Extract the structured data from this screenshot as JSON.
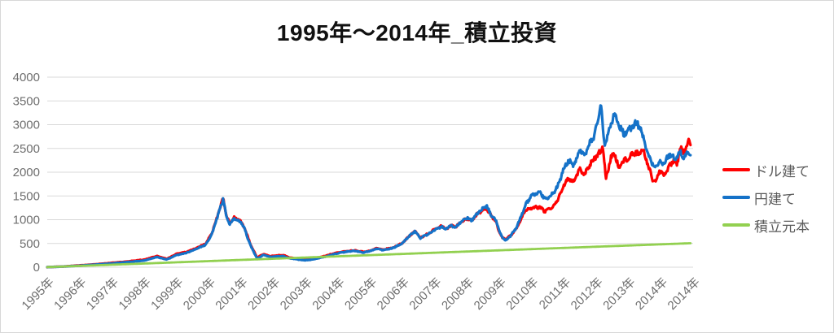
{
  "title": "1995年〜2014年_積立投資",
  "colors": {
    "grid": "#D9D9D9",
    "axis_text": "#6E6E6E",
    "legend_text": "#595959",
    "border": "#D7D7D7",
    "background": "#FFFFFF",
    "dollar_series": "#FF0000",
    "yen_series": "#1572C8",
    "principal_series": "#92D050"
  },
  "chart_data": {
    "type": "line",
    "title": "1995年〜2014年_積立投資",
    "xlabel": "",
    "ylabel": "",
    "ylim": [
      0,
      4000
    ],
    "y_ticks": [
      0,
      500,
      1000,
      1500,
      2000,
      2500,
      3000,
      3500,
      4000
    ],
    "x_range_years": [
      1995.0,
      2015.0
    ],
    "x_tick_labels": [
      "1995年",
      "1996年",
      "1997年",
      "1998年",
      "1999年",
      "2000年",
      "2001年",
      "2002年",
      "2003年",
      "2004年",
      "2005年",
      "2006年",
      "2007年",
      "2008年",
      "2009年",
      "2010年",
      "2011年",
      "2012年",
      "2013年",
      "2014年",
      "2014年"
    ],
    "grid": "horizontal",
    "legend_position": "right",
    "series": [
      {
        "name": "ドル建て",
        "color": "#FF0000",
        "anchors": [
          [
            1995.0,
            2
          ],
          [
            1995.5,
            15
          ],
          [
            1996.0,
            38
          ],
          [
            1996.5,
            62
          ],
          [
            1997.0,
            92
          ],
          [
            1997.5,
            122
          ],
          [
            1998.0,
            160
          ],
          [
            1998.4,
            235
          ],
          [
            1998.7,
            175
          ],
          [
            1999.0,
            280
          ],
          [
            1999.3,
            320
          ],
          [
            1999.6,
            400
          ],
          [
            1999.9,
            490
          ],
          [
            2000.1,
            720
          ],
          [
            2000.3,
            1140
          ],
          [
            2000.45,
            1460
          ],
          [
            2000.55,
            1060
          ],
          [
            2000.65,
            930
          ],
          [
            2000.8,
            1050
          ],
          [
            2001.0,
            960
          ],
          [
            2001.1,
            840
          ],
          [
            2001.3,
            470
          ],
          [
            2001.5,
            200
          ],
          [
            2001.7,
            280
          ],
          [
            2001.9,
            230
          ],
          [
            2002.1,
            245
          ],
          [
            2002.3,
            255
          ],
          [
            2002.5,
            205
          ],
          [
            2002.7,
            185
          ],
          [
            2002.9,
            165
          ],
          [
            2003.1,
            165
          ],
          [
            2003.3,
            190
          ],
          [
            2003.6,
            235
          ],
          [
            2003.9,
            295
          ],
          [
            2004.2,
            330
          ],
          [
            2004.5,
            355
          ],
          [
            2004.8,
            320
          ],
          [
            2005.0,
            350
          ],
          [
            2005.2,
            400
          ],
          [
            2005.4,
            370
          ],
          [
            2005.7,
            410
          ],
          [
            2006.0,
            510
          ],
          [
            2006.2,
            655
          ],
          [
            2006.4,
            760
          ],
          [
            2006.55,
            620
          ],
          [
            2006.8,
            705
          ],
          [
            2007.0,
            800
          ],
          [
            2007.2,
            870
          ],
          [
            2007.35,
            805
          ],
          [
            2007.5,
            875
          ],
          [
            2007.65,
            845
          ],
          [
            2007.8,
            945
          ],
          [
            2008.0,
            1030
          ],
          [
            2008.15,
            980
          ],
          [
            2008.3,
            1110
          ],
          [
            2008.5,
            1215
          ],
          [
            2008.6,
            1245
          ],
          [
            2008.75,
            1080
          ],
          [
            2008.9,
            960
          ],
          [
            2009.0,
            730
          ],
          [
            2009.1,
            615
          ],
          [
            2009.2,
            590
          ],
          [
            2009.35,
            670
          ],
          [
            2009.5,
            780
          ],
          [
            2009.65,
            980
          ],
          [
            2009.8,
            1200
          ],
          [
            2010.0,
            1250
          ],
          [
            2010.25,
            1270
          ],
          [
            2010.4,
            1180
          ],
          [
            2010.6,
            1230
          ],
          [
            2010.8,
            1400
          ],
          [
            2011.0,
            1730
          ],
          [
            2011.15,
            1870
          ],
          [
            2011.3,
            1800
          ],
          [
            2011.5,
            2060
          ],
          [
            2011.65,
            1950
          ],
          [
            2011.8,
            2150
          ],
          [
            2011.95,
            2300
          ],
          [
            2012.1,
            2400
          ],
          [
            2012.2,
            2570
          ],
          [
            2012.3,
            1870
          ],
          [
            2012.45,
            2280
          ],
          [
            2012.55,
            2420
          ],
          [
            2012.7,
            2100
          ],
          [
            2012.85,
            2230
          ],
          [
            2013.0,
            2300
          ],
          [
            2013.15,
            2420
          ],
          [
            2013.3,
            2380
          ],
          [
            2013.45,
            2480
          ],
          [
            2013.6,
            2150
          ],
          [
            2013.75,
            1850
          ],
          [
            2013.85,
            1790
          ],
          [
            2013.95,
            2050
          ],
          [
            2014.1,
            1920
          ],
          [
            2014.25,
            2120
          ],
          [
            2014.4,
            2250
          ],
          [
            2014.5,
            2160
          ],
          [
            2014.6,
            2520
          ],
          [
            2014.7,
            2400
          ],
          [
            2014.85,
            2640
          ],
          [
            2014.92,
            2560
          ]
        ]
      },
      {
        "name": "円建て",
        "color": "#1572C8",
        "anchors": [
          [
            1995.0,
            2
          ],
          [
            1995.5,
            14
          ],
          [
            1996.0,
            32
          ],
          [
            1996.5,
            55
          ],
          [
            1997.0,
            80
          ],
          [
            1997.5,
            110
          ],
          [
            1998.0,
            140
          ],
          [
            1998.4,
            215
          ],
          [
            1998.7,
            160
          ],
          [
            1999.0,
            255
          ],
          [
            1999.3,
            300
          ],
          [
            1999.6,
            380
          ],
          [
            1999.9,
            470
          ],
          [
            2000.1,
            700
          ],
          [
            2000.3,
            1120
          ],
          [
            2000.45,
            1450
          ],
          [
            2000.55,
            1050
          ],
          [
            2000.65,
            910
          ],
          [
            2000.8,
            1030
          ],
          [
            2001.0,
            950
          ],
          [
            2001.1,
            820
          ],
          [
            2001.3,
            450
          ],
          [
            2001.5,
            180
          ],
          [
            2001.7,
            260
          ],
          [
            2001.9,
            215
          ],
          [
            2002.1,
            225
          ],
          [
            2002.3,
            235
          ],
          [
            2002.5,
            190
          ],
          [
            2002.7,
            170
          ],
          [
            2002.9,
            150
          ],
          [
            2003.1,
            150
          ],
          [
            2003.3,
            175
          ],
          [
            2003.6,
            220
          ],
          [
            2003.9,
            280
          ],
          [
            2004.2,
            320
          ],
          [
            2004.5,
            345
          ],
          [
            2004.8,
            310
          ],
          [
            2005.0,
            340
          ],
          [
            2005.2,
            390
          ],
          [
            2005.4,
            360
          ],
          [
            2005.7,
            400
          ],
          [
            2006.0,
            505
          ],
          [
            2006.2,
            650
          ],
          [
            2006.4,
            765
          ],
          [
            2006.55,
            615
          ],
          [
            2006.8,
            700
          ],
          [
            2007.0,
            790
          ],
          [
            2007.2,
            855
          ],
          [
            2007.35,
            800
          ],
          [
            2007.5,
            880
          ],
          [
            2007.65,
            840
          ],
          [
            2007.8,
            950
          ],
          [
            2008.0,
            1040
          ],
          [
            2008.15,
            990
          ],
          [
            2008.3,
            1120
          ],
          [
            2008.5,
            1240
          ],
          [
            2008.6,
            1290
          ],
          [
            2008.75,
            1100
          ],
          [
            2008.9,
            980
          ],
          [
            2009.0,
            750
          ],
          [
            2009.1,
            620
          ],
          [
            2009.2,
            565
          ],
          [
            2009.35,
            660
          ],
          [
            2009.5,
            800
          ],
          [
            2009.65,
            1020
          ],
          [
            2009.8,
            1300
          ],
          [
            2010.0,
            1505
          ],
          [
            2010.25,
            1590
          ],
          [
            2010.4,
            1440
          ],
          [
            2010.6,
            1500
          ],
          [
            2010.8,
            1700
          ],
          [
            2011.0,
            2075
          ],
          [
            2011.15,
            2250
          ],
          [
            2011.3,
            2150
          ],
          [
            2011.5,
            2480
          ],
          [
            2011.65,
            2350
          ],
          [
            2011.8,
            2600
          ],
          [
            2011.95,
            2800
          ],
          [
            2012.05,
            3100
          ],
          [
            2012.15,
            3440
          ],
          [
            2012.25,
            2570
          ],
          [
            2012.4,
            2900
          ],
          [
            2012.55,
            3230
          ],
          [
            2012.7,
            3000
          ],
          [
            2012.85,
            2800
          ],
          [
            2013.0,
            2880
          ],
          [
            2013.28,
            3050
          ],
          [
            2013.45,
            2750
          ],
          [
            2013.6,
            2400
          ],
          [
            2013.75,
            2160
          ],
          [
            2013.85,
            2100
          ],
          [
            2013.95,
            2250
          ],
          [
            2014.05,
            2150
          ],
          [
            2014.15,
            2250
          ],
          [
            2014.3,
            2380
          ],
          [
            2014.45,
            2250
          ],
          [
            2014.6,
            2430
          ],
          [
            2014.7,
            2300
          ],
          [
            2014.85,
            2420
          ],
          [
            2014.92,
            2380
          ]
        ]
      },
      {
        "name": "積立元本",
        "color": "#92D050",
        "anchors": [
          [
            1995.0,
            2
          ],
          [
            2014.92,
            505
          ]
        ]
      }
    ]
  },
  "legend": {
    "items": [
      {
        "label": "ドル建て",
        "color": "#FF0000"
      },
      {
        "label": "円建て",
        "color": "#1572C8"
      },
      {
        "label": "積立元本",
        "color": "#92D050"
      }
    ]
  }
}
